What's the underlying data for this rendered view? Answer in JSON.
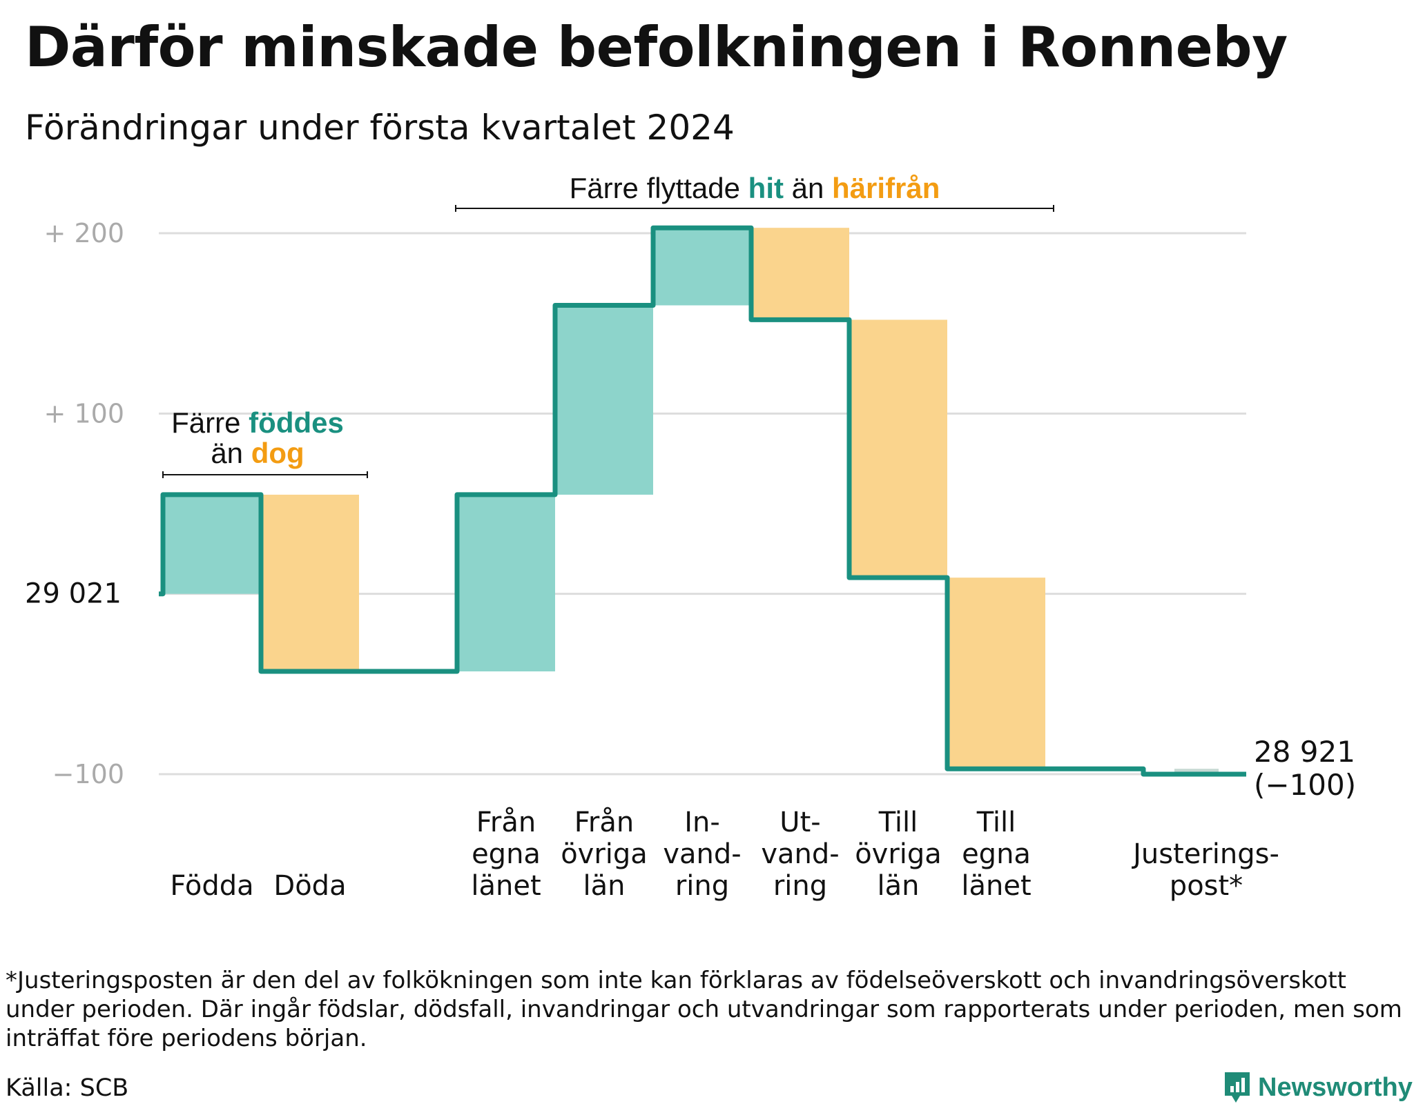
{
  "title": "Därför minskade befolkningen i Ronneby",
  "subtitle": "Förändringar under första kvartalet 2024",
  "footnote": "*Justeringsposten är den del av folkökningen som inte kan förklaras av födelseöverskott och invandringsöverskott under perioden. Där ingår födslar, dödsfall, invandringar och utvandringar som rapporterats under perioden, men som inträffat före periodens början.",
  "source": "Källa: SCB",
  "brand": "Newsworthy",
  "colors": {
    "inflow": "#8dd4cb",
    "outflow": "#fad48d",
    "line": "#1a9080",
    "accent_orange": "#f39c12",
    "grid": "#dddddd"
  },
  "chart_data": {
    "type": "waterfall",
    "start_label": "29 021",
    "start_value": 29021,
    "end_labels": [
      "28 921",
      "(−100)"
    ],
    "end_value": 28921,
    "y_ticks": [
      {
        "value": 200,
        "label": "+ 200"
      },
      {
        "value": 100,
        "label": "+ 100"
      },
      {
        "value": 0,
        "label": "29 021"
      },
      {
        "value": -100,
        "label": "−100"
      }
    ],
    "ylim": [
      -100,
      200
    ],
    "categories": [
      {
        "lines": [
          "Födda"
        ],
        "change": 55,
        "kind": "in"
      },
      {
        "lines": [
          "Döda"
        ],
        "change": -98,
        "kind": "out"
      },
      {
        "lines": [
          ""
        ],
        "change": 0,
        "kind": "gap"
      },
      {
        "lines": [
          "Från",
          "egna",
          "länet"
        ],
        "change": 98,
        "kind": "in"
      },
      {
        "lines": [
          "Från",
          "övriga",
          "län"
        ],
        "change": 105,
        "kind": "in"
      },
      {
        "lines": [
          "In-",
          "vand-",
          "ring"
        ],
        "change": 43,
        "kind": "in"
      },
      {
        "lines": [
          "Ut-",
          "vand-",
          "ring"
        ],
        "change": -51,
        "kind": "out"
      },
      {
        "lines": [
          "Till",
          "övriga",
          "län"
        ],
        "change": -143,
        "kind": "out"
      },
      {
        "lines": [
          "Till",
          "egna",
          "länet"
        ],
        "change": -106,
        "kind": "out"
      },
      {
        "lines": [
          ""
        ],
        "change": 0,
        "kind": "gap"
      },
      {
        "lines": [
          "Justerings-",
          "post*"
        ],
        "change": -3,
        "kind": "adj"
      }
    ],
    "annotations": [
      {
        "text_plain": "Färre",
        "text_in": "föddes",
        "text_mid": "än",
        "text_out": "dog"
      },
      {
        "text_plain": "Färre flyttade",
        "text_in": "hit",
        "text_mid": "än",
        "text_out": "härifrån"
      }
    ]
  }
}
